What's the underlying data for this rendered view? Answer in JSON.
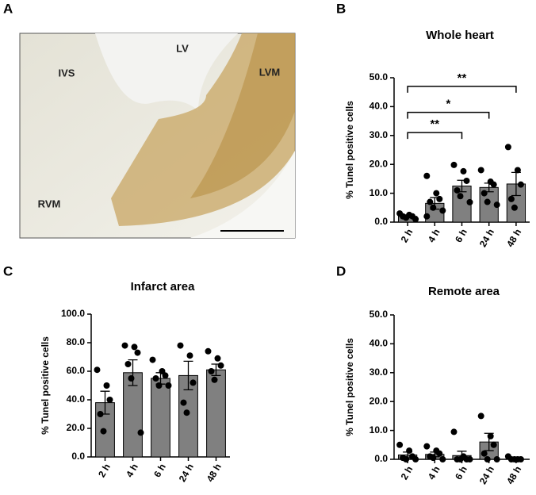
{
  "panel_labels": [
    "A",
    "B",
    "C",
    "D"
  ],
  "image": {
    "labels": [
      "IVS",
      "LV",
      "LVM",
      "RVM"
    ]
  },
  "chart_data": [
    {
      "type": "bar",
      "title": "Whole heart",
      "ylabel": "% Tunel positive cells",
      "categories": [
        "2 h",
        "4 h",
        "6 h",
        "24 h",
        "48 h"
      ],
      "values": [
        2,
        6.5,
        12.5,
        12,
        13.2
      ],
      "errors": [
        0.5,
        2,
        2,
        1.5,
        4
      ],
      "points": [
        [
          3,
          2.5,
          2,
          2,
          1.5,
          1
        ],
        [
          16,
          10,
          8,
          7,
          5,
          4,
          2
        ],
        [
          19.8,
          17.6,
          14.3,
          11,
          9,
          6.9
        ],
        [
          18,
          14,
          13,
          10,
          7,
          6
        ],
        [
          26,
          18,
          13,
          8,
          5
        ]
      ],
      "color": "#808080",
      "ylim": [
        0,
        50
      ],
      "yticks": [
        {
          "value": 0,
          "label": "0.0"
        },
        {
          "value": 10,
          "label": "10.0"
        },
        {
          "value": 20,
          "label": "20.0"
        },
        {
          "value": 30,
          "label": "30.0"
        },
        {
          "value": 40,
          "label": "40.0"
        },
        {
          "value": 50,
          "label": "50.0"
        }
      ],
      "annotations": [
        {
          "text": "**",
          "x": [
            "2 h",
            "48 h"
          ],
          "y": 47
        },
        {
          "text": "*",
          "x": [
            "2 h",
            "24 h"
          ],
          "y": 38
        },
        {
          "text": "**",
          "x": [
            "2 h",
            "6 h"
          ],
          "y": 31
        }
      ]
    },
    {
      "type": "bar",
      "title": "Infarct area",
      "ylabel": "% Tunel positive cells",
      "categories": [
        "2 h",
        "4 h",
        "6 h",
        "24 h",
        "48 h"
      ],
      "values": [
        38,
        59,
        55,
        57,
        61
      ],
      "errors": [
        8,
        9,
        4,
        10,
        4
      ],
      "points": [
        [
          61,
          50,
          40,
          30,
          18
        ],
        [
          78,
          77,
          73,
          65,
          55,
          17
        ],
        [
          68,
          60,
          57,
          55,
          50,
          50
        ],
        [
          78,
          71,
          52,
          38,
          31
        ],
        [
          74,
          69,
          64,
          60,
          54
        ]
      ],
      "color": "#808080",
      "ylim": [
        0,
        100
      ],
      "yticks": [
        {
          "value": 0,
          "label": "0.0"
        },
        {
          "value": 20,
          "label": "20.0"
        },
        {
          "value": 40,
          "label": "40.0"
        },
        {
          "value": 60,
          "label": "60.0"
        },
        {
          "value": 80,
          "label": "80.0"
        },
        {
          "value": 100,
          "label": "100.0"
        }
      ]
    },
    {
      "type": "bar",
      "title": "Remote area",
      "ylabel": "% Tunel positive cells",
      "categories": [
        "2 h",
        "4 h",
        "6 h",
        "24 h",
        "48 h"
      ],
      "values": [
        1.5,
        1.7,
        1.3,
        6,
        0
      ],
      "errors": [
        1,
        0.8,
        1.5,
        3,
        0
      ],
      "points": [
        [
          5,
          3,
          1,
          0.5,
          0,
          0
        ],
        [
          4.5,
          3,
          2,
          1,
          0.5,
          0
        ],
        [
          9.5,
          1,
          0,
          0,
          0,
          0
        ],
        [
          15,
          8,
          5,
          2,
          0,
          0
        ],
        [
          1,
          0,
          0,
          0,
          0
        ]
      ],
      "color": "#808080",
      "ylim": [
        0,
        50
      ],
      "yticks": [
        {
          "value": 0,
          "label": "0.0"
        },
        {
          "value": 10,
          "label": "10.0"
        },
        {
          "value": 20,
          "label": "20.0"
        },
        {
          "value": 30,
          "label": "30.0"
        },
        {
          "value": 40,
          "label": "40.0"
        },
        {
          "value": 50,
          "label": "50.0"
        }
      ]
    }
  ]
}
